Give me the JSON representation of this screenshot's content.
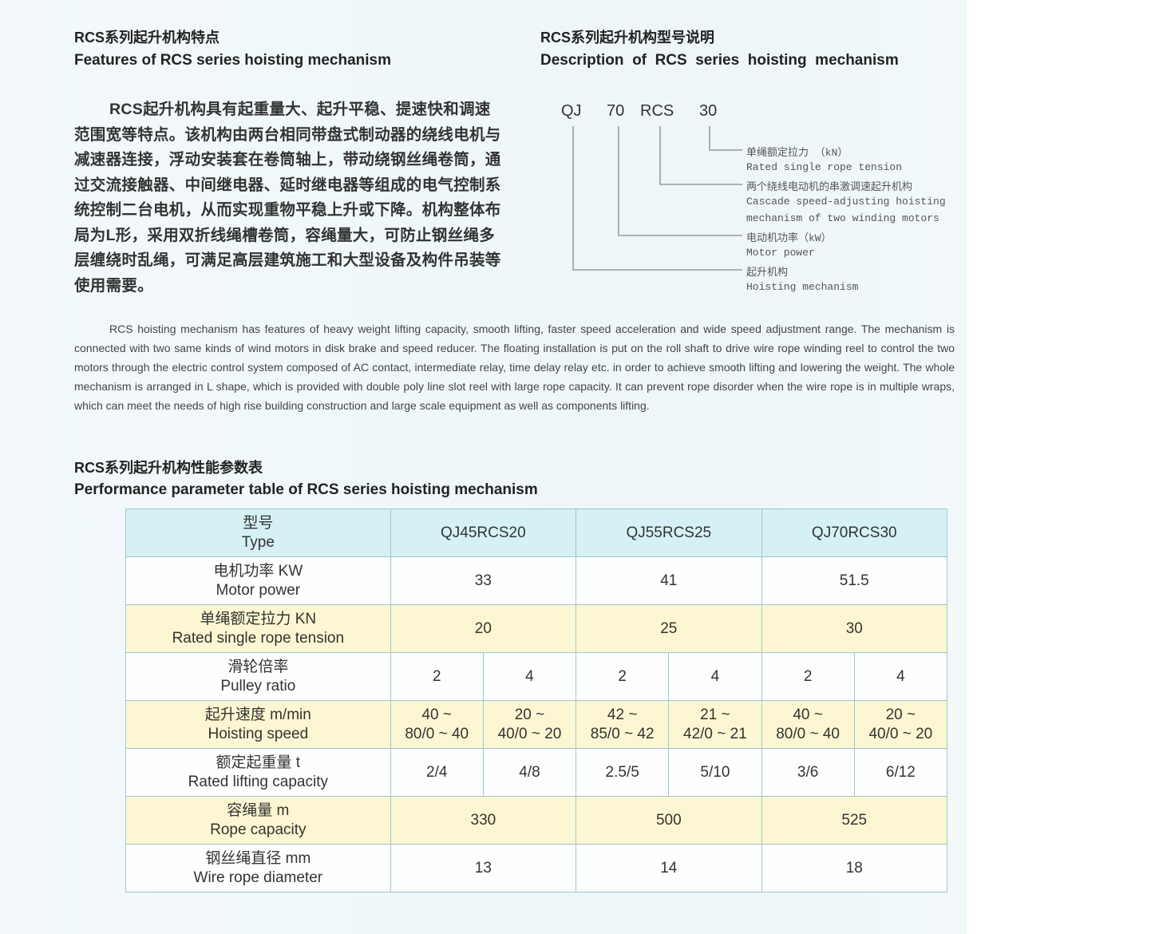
{
  "features": {
    "title_cn": "RCS系列起升机构特点",
    "title_en": "Features of RCS series hoisting mechanism",
    "text_cn": "RCS起升机构具有起重量大、起升平稳、提速快和调速范围宽等特点。该机构由两台相同带盘式制动器的绕线电机与减速器连接，浮动安装套在卷筒轴上，带动绕钢丝绳卷筒，通过交流接触器、中间继电器、延时继电器等组成的电气控制系统控制二台电机，从而实现重物平稳上升或下降。机构整体布局为L形，采用双折线绳槽卷筒，容绳量大，可防止钢丝绳多层缠绕时乱绳，可满足高层建筑施工和大型设备及构件吊装等使用需要。",
    "text_en": "RCS hoisting mechanism has features of heavy weight lifting capacity, smooth lifting, faster speed acceleration and wide speed adjustment range. The mechanism is connected with two same kinds of wind motors in disk brake and speed reducer. The floating installation is put on the roll shaft to drive wire rope winding reel to control the two motors through the electric control system composed of AC contact, intermediate relay, time delay relay etc. in order to achieve smooth lifting and lowering the weight. The whole mechanism is arranged in L shape, which is provided with double poly line slot reel with large rope capacity. It can prevent rope disorder when the wire rope is in multiple wraps, which can meet the needs of high rise building construction and large scale equipment as well as components lifting."
  },
  "description": {
    "title_cn": "RCS系列起升机构型号说明",
    "title_en": "Description  of  RCS  series  hoisting  mechanism",
    "code": [
      "QJ",
      "70",
      "RCS",
      "30"
    ],
    "labels": [
      "单绳额定拉力 （kN）",
      "Rated single rope tension",
      "两个绕线电动机的串激调速起升机构",
      "Cascade speed-adjusting hoisting",
      "mechanism of two winding motors",
      "电动机功率（kW）",
      "Motor power",
      "起升机构",
      "Hoisting mechanism"
    ]
  },
  "table": {
    "title_cn": "RCS系列起升机构性能参数表",
    "title_en": "Performance parameter table of RCS series hoisting mechanism",
    "header": {
      "cn": "型号",
      "en": "Type",
      "models": [
        "QJ45RCS20",
        "QJ55RCS25",
        "QJ70RCS30"
      ]
    },
    "motor": {
      "cn": "电机功率 KW",
      "en": "Motor  power",
      "v": [
        "33",
        "41",
        "51.5"
      ]
    },
    "tension": {
      "cn": "单绳额定拉力 KN",
      "en": "Rated single rope tension",
      "v": [
        "20",
        "25",
        "30"
      ]
    },
    "pulley": {
      "cn": "滑轮倍率",
      "en": "Pulley ratio",
      "v": [
        "2",
        "4",
        "2",
        "4",
        "2",
        "4"
      ]
    },
    "speed": {
      "cn": "起升速度 m/min",
      "en": "Hoisting speed",
      "v": [
        [
          "40 ~",
          "80/0 ~ 40"
        ],
        [
          "20 ~",
          "40/0 ~ 20"
        ],
        [
          "42 ~",
          "85/0 ~ 42"
        ],
        [
          "21 ~",
          "42/0 ~ 21"
        ],
        [
          "40 ~",
          "80/0 ~ 40"
        ],
        [
          "20 ~",
          "40/0 ~ 20"
        ]
      ]
    },
    "capacity": {
      "cn": "额定起重量 t",
      "en": "Rated lifting capacity",
      "v": [
        "2/4",
        "4/8",
        "2.5/5",
        "5/10",
        "3/6",
        "6/12"
      ]
    },
    "rope": {
      "cn": "容绳量 m",
      "en": "Rope capacity",
      "v": [
        "330",
        "500",
        "525"
      ]
    },
    "diameter": {
      "cn": "钢丝绳直径 mm",
      "en": "Wire rope diameter",
      "v": [
        "13",
        "14",
        "18"
      ]
    }
  }
}
